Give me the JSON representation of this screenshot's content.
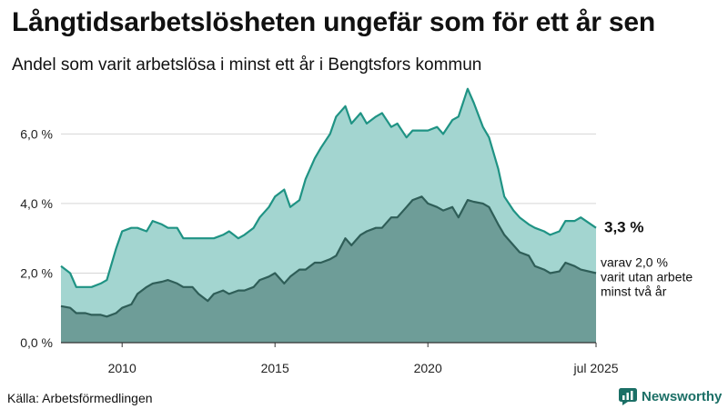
{
  "header": {
    "title": "Långtidsarbetslösheten ungefär som för ett år sen",
    "subtitle": "Andel som varit arbetslösa i minst ett år i Bengtsfors kommun"
  },
  "footer": {
    "source": "Källa: Arbetsförmedlingen",
    "brand": "Newsworthy"
  },
  "colors": {
    "total_fill": "#a3d5d0",
    "total_line": "#1f9384",
    "long_fill": "#6e9d98",
    "long_line": "#2f5e58"
  },
  "chart_data": {
    "type": "area",
    "title": "Långtidsarbetslösheten ungefär som för ett år sen",
    "subtitle": "Andel som varit arbetslösa i minst ett år i Bengtsfors kommun",
    "x": [
      2008.0,
      2008.3,
      2008.5,
      2008.8,
      2009.0,
      2009.3,
      2009.5,
      2009.8,
      2010.0,
      2010.3,
      2010.5,
      2010.8,
      2011.0,
      2011.3,
      2011.5,
      2011.8,
      2012.0,
      2012.3,
      2012.5,
      2012.8,
      2013.0,
      2013.3,
      2013.5,
      2013.8,
      2014.0,
      2014.3,
      2014.5,
      2014.8,
      2015.0,
      2015.3,
      2015.5,
      2015.8,
      2016.0,
      2016.3,
      2016.5,
      2016.8,
      2017.0,
      2017.3,
      2017.5,
      2017.8,
      2018.0,
      2018.3,
      2018.5,
      2018.8,
      2019.0,
      2019.3,
      2019.5,
      2019.8,
      2020.0,
      2020.3,
      2020.5,
      2020.8,
      2021.0,
      2021.3,
      2021.5,
      2021.8,
      2022.0,
      2022.3,
      2022.5,
      2022.8,
      2023.0,
      2023.3,
      2023.5,
      2023.8,
      2024.0,
      2024.3,
      2024.5,
      2024.8,
      2025.0,
      2025.5
    ],
    "series": [
      {
        "key": "total",
        "values": [
          2.2,
          2.0,
          1.6,
          1.6,
          1.6,
          1.7,
          1.8,
          2.7,
          3.2,
          3.3,
          3.3,
          3.2,
          3.5,
          3.4,
          3.3,
          3.3,
          3.0,
          3.0,
          3.0,
          3.0,
          3.0,
          3.1,
          3.2,
          3.0,
          3.1,
          3.3,
          3.6,
          3.9,
          4.2,
          4.4,
          3.9,
          4.1,
          4.7,
          5.3,
          5.6,
          6.0,
          6.5,
          6.8,
          6.3,
          6.6,
          6.3,
          6.5,
          6.6,
          6.2,
          6.3,
          5.9,
          6.1,
          6.1,
          6.1,
          6.2,
          6.0,
          6.4,
          6.5,
          7.3,
          6.9,
          6.2,
          5.9,
          5.0,
          4.2,
          3.8,
          3.6,
          3.4,
          3.3,
          3.2,
          3.1,
          3.2,
          3.5,
          3.5,
          3.6,
          3.3
        ]
      },
      {
        "key": "long",
        "values": [
          1.05,
          1.0,
          0.85,
          0.85,
          0.8,
          0.8,
          0.75,
          0.85,
          1.0,
          1.1,
          1.4,
          1.6,
          1.7,
          1.75,
          1.8,
          1.7,
          1.6,
          1.6,
          1.4,
          1.2,
          1.4,
          1.5,
          1.4,
          1.5,
          1.5,
          1.6,
          1.8,
          1.9,
          2.0,
          1.7,
          1.9,
          2.1,
          2.1,
          2.3,
          2.3,
          2.4,
          2.5,
          3.0,
          2.8,
          3.1,
          3.2,
          3.3,
          3.3,
          3.6,
          3.6,
          3.9,
          4.1,
          4.2,
          4.0,
          3.9,
          3.8,
          3.9,
          3.6,
          4.1,
          4.05,
          4.0,
          3.9,
          3.4,
          3.1,
          2.8,
          2.6,
          2.5,
          2.2,
          2.1,
          2.0,
          2.05,
          2.3,
          2.2,
          2.1,
          2.0
        ]
      }
    ],
    "x_ticks": [
      {
        "value": 2010,
        "label": "2010"
      },
      {
        "value": 2015,
        "label": "2015"
      },
      {
        "value": 2020,
        "label": "2020"
      },
      {
        "value": 2025.5,
        "label": "jul 2025"
      }
    ],
    "y_ticks": [
      {
        "value": 0,
        "label": "0,0 %"
      },
      {
        "value": 2,
        "label": "2,0 %"
      },
      {
        "value": 4,
        "label": "4,0 %"
      },
      {
        "value": 6,
        "label": "6,0 %"
      }
    ],
    "xlim": [
      2008.0,
      2025.5
    ],
    "ylim": [
      0,
      7.5
    ],
    "grid": true,
    "annotations": {
      "total_end": "3,3 %",
      "long_end": [
        "varav 2,0 %",
        "varit utan arbete",
        "minst två år"
      ]
    }
  }
}
